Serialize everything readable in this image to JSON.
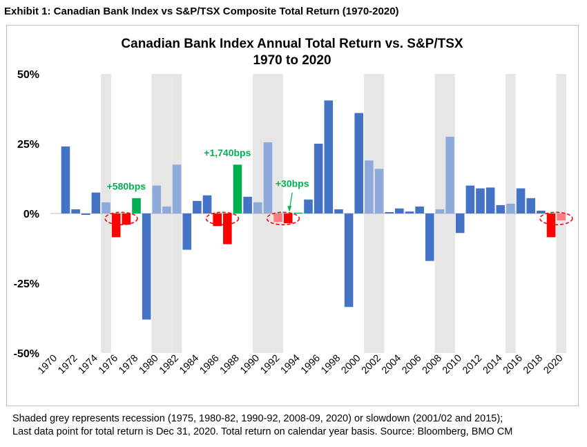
{
  "exhibit_title": "Exhibit 1: Canadian Bank Index vs S&P/TSX Composite Total Return (1970-2020)",
  "footnote": [
    "Shaded grey represents recession (1975, 1980-82, 1990-92, 2008-09, 2020) or slowdown (2001/02 and 2015);",
    "Last data point for total return is Dec 31, 2020. Total return on calendar year basis. Source: Bloomberg, BMO CM"
  ],
  "colors": {
    "bar": "#4472c4",
    "bar_light": "#8eaadb",
    "positive_highlight": "#00b050",
    "negative_highlight": "#ff0000",
    "negative_light": "#ff7c80",
    "shade": "#e6e6e6",
    "annotation": "#00b050"
  },
  "chart_data": {
    "type": "bar",
    "title": "Canadian Bank Index Annual Total Return vs. S&P/TSX",
    "subtitle": "1970 to 2020",
    "xlabel": "",
    "ylabel": "",
    "ylim": [
      -50,
      50
    ],
    "yticks": [
      "50%",
      "25%",
      "0%",
      "-25%",
      "-50%"
    ],
    "ytick_values": [
      50,
      25,
      0,
      -25,
      -50
    ],
    "categories": [
      1970,
      1971,
      1972,
      1973,
      1974,
      1975,
      1976,
      1977,
      1978,
      1979,
      1980,
      1981,
      1982,
      1983,
      1984,
      1985,
      1986,
      1987,
      1988,
      1989,
      1990,
      1991,
      1992,
      1993,
      1994,
      1995,
      1996,
      1997,
      1998,
      1999,
      2000,
      2001,
      2002,
      2003,
      2004,
      2005,
      2006,
      2007,
      2008,
      2009,
      2010,
      2011,
      2012,
      2013,
      2014,
      2015,
      2016,
      2017,
      2018,
      2019,
      2020
    ],
    "xtick_labels": [
      "1970",
      "1972",
      "1974",
      "1976",
      "1978",
      "1980",
      "1982",
      "1984",
      "1986",
      "1988",
      "1990",
      "1992",
      "1994",
      "1996",
      "1998",
      "2000",
      "2002",
      "2004",
      "2006",
      "2008",
      "2010",
      "2012",
      "2014",
      "2016",
      "2018",
      "2020"
    ],
    "values": [
      0,
      24,
      1.5,
      -0.5,
      7.5,
      4,
      -8.5,
      -4,
      5.5,
      -38,
      10,
      2.5,
      17.5,
      -13,
      4.5,
      6.5,
      -4.5,
      -11,
      17.5,
      6,
      4,
      25.5,
      -3,
      -3.5,
      0.3,
      5,
      25,
      40.5,
      1.5,
      -33.5,
      36,
      19,
      16,
      0.5,
      1.8,
      0.7,
      2.5,
      -17,
      1.5,
      27.5,
      -7,
      10,
      9,
      9.3,
      3,
      3.5,
      9,
      5.5,
      1,
      -8.5,
      -2.5
    ],
    "bar_styles": [
      "bar",
      "bar",
      "bar",
      "bar",
      "bar",
      "bar_light",
      "negative_highlight",
      "negative_highlight",
      "positive_highlight",
      "bar",
      "bar_light",
      "bar_light",
      "bar_light",
      "bar",
      "bar",
      "bar",
      "negative_highlight",
      "negative_highlight",
      "positive_highlight",
      "bar",
      "bar_light",
      "bar_light",
      "negative_light",
      "negative_highlight",
      "positive_highlight",
      "bar",
      "bar",
      "bar",
      "bar",
      "bar",
      "bar",
      "bar_light",
      "bar_light",
      "bar",
      "bar",
      "bar",
      "bar",
      "bar",
      "bar_light",
      "bar_light",
      "bar",
      "bar",
      "bar",
      "bar",
      "bar",
      "bar_light",
      "bar",
      "bar",
      "bar",
      "negative_highlight",
      "negative_light"
    ],
    "shaded_years": [
      1975,
      1980,
      1981,
      1982,
      1990,
      1991,
      1992,
      2001,
      2002,
      2008,
      2009,
      2015,
      2020
    ],
    "highlight_circles": [
      1976.5,
      1986.5,
      1992.5,
      2019.5
    ],
    "annotations": [
      {
        "text": "+580bps",
        "year": 1977,
        "value": 8.5
      },
      {
        "text": "+1,740bps",
        "year": 1987,
        "value": 20.5
      },
      {
        "text": "+30bps",
        "year": 1993,
        "value": 9.5
      }
    ],
    "grid": false,
    "legend": "none"
  }
}
